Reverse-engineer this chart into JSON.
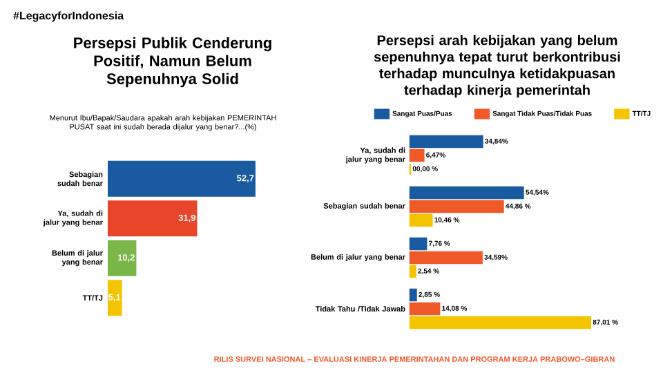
{
  "chart_data": [
    {
      "type": "bar",
      "orientation": "horizontal",
      "title": "Persepsi Publik Cenderung Positif, Namun Belum Sepenuhnya Solid",
      "subtitle": "Menurut Ibu/Bapak/Saudara apakah arah kebijakan PEMERINTAH PUSAT saat ini sudah berada dijalur yang benar?...(%)",
      "categories": [
        "Sebagian sudah benar",
        "Ya, sudah di jalur yang benar",
        "Belum di jalur yang benar",
        "TT/TJ"
      ],
      "values": [
        52.7,
        31.9,
        10.2,
        5.1
      ],
      "colors": [
        "#1a5aa0",
        "#e8452a",
        "#7ab648",
        "#f5c400"
      ],
      "value_labels": [
        "52,7",
        "31,9",
        "10,2",
        "5,1"
      ],
      "tick_labels": "y",
      "legend": false,
      "annotations": [
        "#LegacyforIndonesia"
      ]
    },
    {
      "type": "bar",
      "orientation": "horizontal",
      "title": "Persepsi arah kebijakan yang belum sepenuhnya tepat turut berkontribusi terhadap munculnya ketidakpuasan terhadap kinerja pemerintah",
      "categories": [
        "Ya, sudah di jalur yang benar",
        "Sebagian sudah benar",
        "Belum di jalur yang benar",
        "Tidak Tahu /Tidak Jawab"
      ],
      "tick_labels": "y",
      "legend": "top",
      "series": [
        {
          "name": "Sangat Puas/Puas",
          "color": "#1a5aa0",
          "values": [
            34.84,
            54.54,
            7.76,
            2.85
          ],
          "value_labels": [
            "34,84%",
            "54,54%",
            "7,76 %",
            "2,85 %"
          ]
        },
        {
          "name": "Sangat Tidak Puas/Tidak Puas",
          "color": "#f05a28",
          "values": [
            6.47,
            44.86,
            34.59,
            14.08
          ],
          "value_labels": [
            "6,47%",
            "44,86 %",
            "34,59%",
            "14,08 %"
          ]
        },
        {
          "name": "TT/TJ",
          "color": "#f5c400",
          "values": [
            0.0,
            10.46,
            2.54,
            87.01
          ],
          "value_labels": [
            "00,00 %",
            "10,46 %",
            "2,54 %",
            "87,01 %"
          ]
        }
      ],
      "annotations": [
        "RILIS SURVEI NASIONAL – EVALUASI KINERJA PEMERINTAHAN DAN PROGRAM KERJA PRABOWO–GIBRAN"
      ]
    }
  ]
}
